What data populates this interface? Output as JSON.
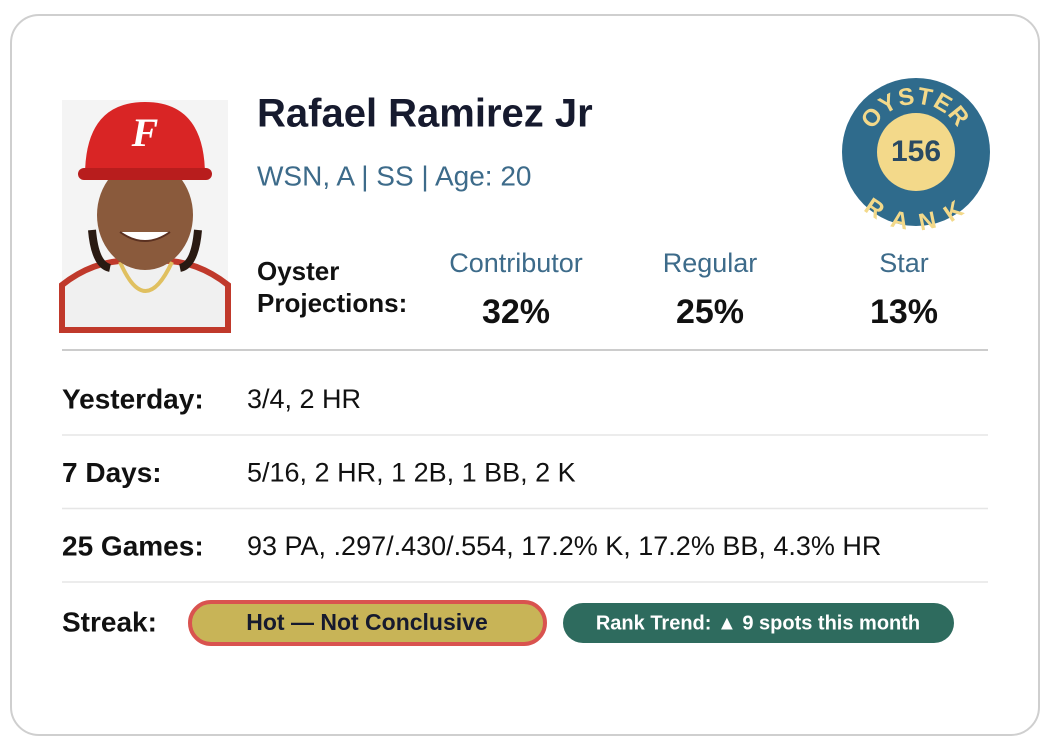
{
  "player": {
    "name": "Rafael Ramirez Jr",
    "details": "WSN, A | SS | Age: 20"
  },
  "badge": {
    "top_text": "OYSTER",
    "bottom_text": "RANK",
    "rank": "156"
  },
  "projections": {
    "label_line1": "Oyster",
    "label_line2": "Projections:",
    "columns": [
      {
        "label": "Contributor",
        "value": "32%"
      },
      {
        "label": "Regular",
        "value": "25%"
      },
      {
        "label": "Star",
        "value": "13%"
      }
    ]
  },
  "stats": {
    "rows": [
      {
        "label": "Yesterday:",
        "value": "3/4, 2 HR"
      },
      {
        "label": "7 Days:",
        "value": "5/16, 2 HR, 1 2B, 1 BB, 2 K"
      },
      {
        "label": "25 Games:",
        "value": "93 PA, .297/.430/.554, 17.2% K, 17.2% BB, 4.3% HR"
      }
    ]
  },
  "streak": {
    "label": "Streak:",
    "status": "Hot — Not Conclusive",
    "trend": "Rank Trend: ▲ 9 spots this month"
  }
}
